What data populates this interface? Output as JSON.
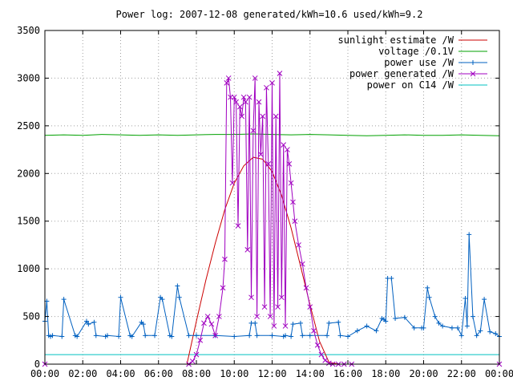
{
  "chart_data": {
    "type": "line",
    "title": "Power log: 2007-12-08 generated/kWh=10.6 used/kWh=9.2",
    "xlabel": "",
    "ylabel": "",
    "x_range_hours": [
      0,
      24
    ],
    "ylim": [
      0,
      3500
    ],
    "grid": true,
    "legend_position": "top-right",
    "x_tick_labels": [
      "00:00",
      "02:00",
      "04:00",
      "06:00",
      "08:00",
      "10:00",
      "12:00",
      "14:00",
      "16:00",
      "18:00",
      "20:00",
      "22:00",
      "00:00"
    ],
    "y_ticks": [
      0,
      500,
      1000,
      1500,
      2000,
      2500,
      3000,
      3500
    ],
    "series": [
      {
        "name": "sunlight estimate /W",
        "color": "#cc0000",
        "marker": "none",
        "x": [
          7.5,
          8.0,
          8.5,
          9.0,
          9.5,
          10.0,
          10.5,
          11.0,
          11.5,
          12.0,
          12.5,
          13.0,
          13.5,
          14.0,
          14.5,
          15.0,
          15.5
        ],
        "y": [
          0,
          450,
          880,
          1270,
          1620,
          1900,
          2080,
          2170,
          2150,
          2020,
          1770,
          1430,
          1030,
          620,
          240,
          20,
          0
        ]
      },
      {
        "name": "voltage /0.1V",
        "color": "#00a000",
        "marker": "none",
        "x": [
          0,
          1,
          2,
          3,
          4,
          5,
          6,
          7,
          8,
          9,
          10,
          11,
          12,
          13,
          14,
          15,
          16,
          17,
          18,
          19,
          20,
          21,
          22,
          23,
          24
        ],
        "y": [
          2400,
          2405,
          2400,
          2410,
          2405,
          2400,
          2405,
          2400,
          2405,
          2410,
          2410,
          2415,
          2410,
          2405,
          2410,
          2405,
          2400,
          2395,
          2400,
          2405,
          2400,
          2400,
          2405,
          2400,
          2395
        ]
      },
      {
        "name": "power use /W",
        "color": "#0060c0",
        "marker": "plus",
        "x": [
          0,
          0.1,
          0.2,
          0.3,
          0.4,
          0.9,
          1.0,
          1.6,
          1.7,
          2.2,
          2.3,
          2.6,
          2.7,
          3.2,
          3.3,
          3.9,
          4.0,
          4.5,
          4.6,
          5.1,
          5.2,
          5.3,
          5.8,
          6.1,
          6.2,
          6.6,
          6.7,
          7.0,
          7.1,
          7.6,
          8.0,
          9.0,
          10.0,
          10.8,
          10.9,
          11.1,
          11.2,
          12.0,
          12.6,
          12.7,
          13.0,
          13.1,
          13.5,
          13.6,
          14.0,
          14.9,
          15.0,
          15.5,
          15.6,
          16.0,
          16.5,
          17.0,
          17.5,
          17.8,
          17.9,
          18.0,
          18.1,
          18.3,
          18.5,
          19.0,
          19.5,
          19.9,
          20.0,
          20.2,
          20.3,
          20.6,
          20.8,
          21.0,
          21.5,
          21.8,
          22.0,
          22.2,
          22.3,
          22.4,
          22.6,
          22.8,
          23.0,
          23.2,
          23.5,
          23.8,
          24.0
        ],
        "y": [
          450,
          660,
          300,
          290,
          300,
          290,
          680,
          300,
          290,
          450,
          420,
          440,
          300,
          290,
          300,
          290,
          700,
          300,
          290,
          440,
          420,
          300,
          300,
          700,
          680,
          300,
          290,
          820,
          700,
          300,
          300,
          300,
          290,
          300,
          430,
          430,
          300,
          300,
          290,
          300,
          290,
          420,
          430,
          300,
          300,
          300,
          430,
          440,
          300,
          290,
          350,
          400,
          350,
          480,
          470,
          450,
          900,
          900,
          480,
          490,
          380,
          380,
          380,
          800,
          700,
          500,
          430,
          400,
          380,
          380,
          300,
          690,
          400,
          1360,
          500,
          300,
          350,
          680,
          340,
          320,
          290
        ]
      },
      {
        "name": "power generated /W",
        "color": "#a000c0",
        "marker": "x",
        "x": [
          0,
          7.6,
          7.8,
          8.0,
          8.2,
          8.4,
          8.6,
          8.8,
          9.0,
          9.2,
          9.4,
          9.5,
          9.6,
          9.7,
          9.8,
          9.9,
          10.0,
          10.1,
          10.2,
          10.3,
          10.4,
          10.5,
          10.6,
          10.7,
          10.8,
          10.9,
          11.0,
          11.1,
          11.2,
          11.3,
          11.4,
          11.5,
          11.6,
          11.7,
          11.8,
          11.9,
          12.0,
          12.1,
          12.2,
          12.3,
          12.4,
          12.5,
          12.6,
          12.7,
          12.8,
          12.9,
          13.0,
          13.1,
          13.2,
          13.4,
          13.6,
          13.8,
          14.0,
          14.2,
          14.4,
          14.6,
          14.8,
          15.0,
          15.2,
          15.5,
          15.8,
          16.2,
          24.0
        ],
        "y": [
          0,
          0,
          30,
          100,
          250,
          430,
          500,
          420,
          300,
          500,
          800,
          1100,
          2950,
          3000,
          2800,
          1900,
          2800,
          2750,
          1450,
          2700,
          2600,
          2800,
          2750,
          1200,
          2800,
          700,
          2450,
          3000,
          500,
          2750,
          2200,
          2600,
          600,
          2900,
          2100,
          500,
          2950,
          400,
          2600,
          600,
          3050,
          700,
          2300,
          400,
          2250,
          2100,
          1900,
          1700,
          1500,
          1250,
          1050,
          800,
          600,
          350,
          200,
          100,
          40,
          10,
          0,
          0,
          0,
          0,
          0
        ]
      },
      {
        "name": "power on C14 /W",
        "color": "#00c0c0",
        "marker": "none",
        "x": [
          0,
          24
        ],
        "y": [
          100,
          100
        ]
      }
    ]
  }
}
